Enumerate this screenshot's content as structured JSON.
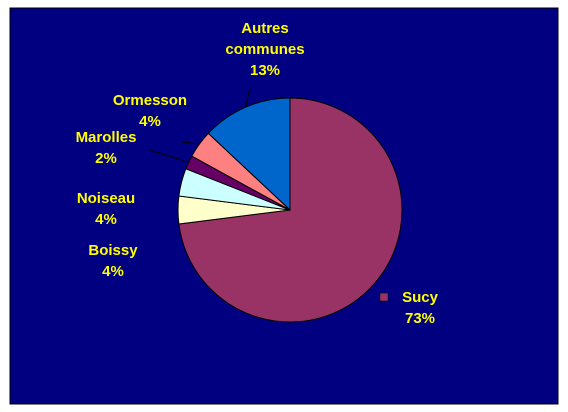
{
  "chart_data": {
    "type": "pie",
    "categories": [
      "Sucy",
      "Boissy",
      "Noiseau",
      "Marolles",
      "Ormesson",
      "Autres communes"
    ],
    "values": [
      73,
      4,
      4,
      2,
      4,
      13
    ],
    "value_labels": [
      "73%",
      "4%",
      "4%",
      "2%",
      "4%",
      "13%"
    ],
    "colors": [
      "#993366",
      "#ffffcc",
      "#ccffff",
      "#660066",
      "#ff8080",
      "#0066cc"
    ]
  }
}
